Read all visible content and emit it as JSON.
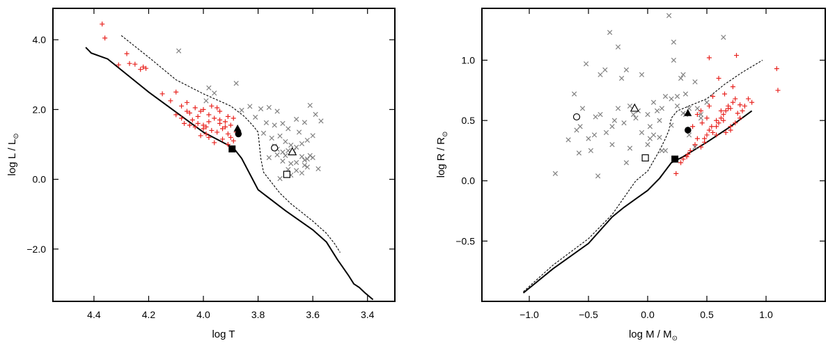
{
  "chart_data": [
    {
      "type": "scatter",
      "title": "",
      "xlabel": "log T",
      "ylabel": "log L / L",
      "ylabel_symbol": "⊙",
      "xlim": [
        4.55,
        3.3
      ],
      "ylim": [
        -3.5,
        4.9
      ],
      "x_reversed": true,
      "grid": false,
      "xticks": [
        4.4,
        4.2,
        4.0,
        3.8,
        3.6,
        3.4
      ],
      "xtick_labels": [
        "4.4",
        "4.2",
        "4.0",
        "3.8",
        "3.6",
        "3.4"
      ],
      "yticks": [
        4.0,
        2.0,
        0.0,
        -2.0
      ],
      "ytick_labels": [
        "4.0",
        "2.0",
        "0.0",
        "−2.0"
      ],
      "colors": {
        "grey": "#808080",
        "red": "#e8231f",
        "black": "#000000"
      },
      "series": [
        {
          "marker": "x",
          "color": "#808080",
          "x": [
            4.09,
            3.98,
            3.96,
            3.99,
            3.88,
            3.83,
            3.79,
            3.76,
            3.73,
            3.86,
            3.81,
            3.77,
            3.74,
            3.71,
            3.69,
            3.66,
            3.63,
            3.61,
            3.59,
            3.57,
            3.78,
            3.75,
            3.72,
            3.7,
            3.68,
            3.65,
            3.62,
            3.6,
            3.74,
            3.71,
            3.69,
            3.66,
            3.64,
            3.76,
            3.73,
            3.7,
            3.67,
            3.64,
            3.62,
            3.71,
            3.68,
            3.66,
            3.63,
            3.61,
            3.69,
            3.66,
            3.64,
            3.62,
            3.72,
            3.68,
            3.6,
            3.63,
            3.58,
            3.73
          ],
          "y": [
            3.68,
            2.62,
            2.47,
            2.25,
            2.75,
            2.09,
            2.02,
            2.06,
            1.95,
            1.98,
            1.78,
            1.62,
            1.55,
            1.6,
            1.45,
            1.72,
            1.63,
            2.12,
            1.86,
            1.67,
            1.32,
            1.18,
            1.24,
            1.08,
            0.98,
            1.35,
            1.12,
            1.25,
            0.95,
            0.78,
            0.82,
            0.92,
            1.02,
            0.62,
            0.7,
            0.68,
            0.82,
            0.65,
            0.58,
            0.52,
            0.45,
            0.48,
            0.55,
            0.68,
            0.28,
            0.25,
            0.18,
            0.35,
            0.02,
            0.12,
            0.62,
            0.4,
            0.3,
            0.86
          ]
        },
        {
          "marker": "+",
          "color": "#e8231f",
          "x": [
            4.37,
            4.36,
            4.31,
            4.28,
            4.27,
            4.25,
            4.22,
            4.21,
            4.23,
            4.15,
            4.12,
            4.1,
            4.08,
            4.06,
            4.05,
            4.03,
            4.01,
            4.0,
            3.98,
            3.97,
            3.95,
            3.94,
            3.92,
            3.91,
            3.9,
            3.89,
            4.1,
            4.08,
            4.06,
            4.04,
            4.02,
            4.0,
            3.98,
            3.96,
            3.94,
            3.92,
            3.93,
            3.95,
            3.97,
            3.99,
            4.01,
            4.03,
            4.05,
            4.07,
            3.91,
            3.9,
            3.89,
            3.93,
            3.96,
            3.98,
            4.0,
            3.94,
            3.88,
            4.02,
            3.99,
            3.91
          ],
          "y": [
            4.45,
            4.05,
            3.28,
            3.6,
            3.32,
            3.3,
            3.22,
            3.18,
            3.15,
            2.45,
            2.25,
            2.5,
            2.1,
            2.2,
            1.9,
            2.05,
            1.95,
            2.0,
            1.85,
            2.1,
            2.05,
            1.7,
            1.65,
            1.8,
            1.55,
            1.75,
            1.85,
            1.75,
            1.95,
            1.7,
            1.6,
            1.55,
            1.65,
            1.75,
            1.6,
            1.5,
            1.45,
            1.35,
            1.4,
            1.3,
            1.25,
            1.5,
            1.55,
            1.6,
            1.3,
            1.2,
            1.1,
            1.15,
            1.05,
            1.2,
            1.45,
            1.95,
            1.35,
            1.8,
            1.5,
            1.0
          ]
        },
        {
          "marker": "filled-square",
          "color": "#000000",
          "x": [
            3.895
          ],
          "y": [
            0.87
          ]
        },
        {
          "marker": "filled-triangle",
          "color": "#000000",
          "x": [
            3.875
          ],
          "y": [
            1.45
          ]
        },
        {
          "marker": "filled-circle",
          "color": "#000000",
          "x": [
            3.872
          ],
          "y": [
            1.3
          ]
        },
        {
          "marker": "open-circle",
          "color": "#000000",
          "x": [
            3.74
          ],
          "y": [
            0.9
          ]
        },
        {
          "marker": "open-triangle",
          "color": "#000000",
          "x": [
            3.675
          ],
          "y": [
            0.78
          ]
        },
        {
          "marker": "open-square",
          "color": "#000000",
          "x": [
            3.695
          ],
          "y": [
            0.14
          ]
        },
        {
          "line": "solid",
          "color": "#000000",
          "x": [
            4.43,
            4.41,
            4.35,
            4.2,
            4.0,
            3.89,
            3.86,
            3.8,
            3.7,
            3.6,
            3.55,
            3.51,
            3.47,
            3.45,
            3.43,
            3.41,
            3.38
          ],
          "y": [
            3.78,
            3.62,
            3.45,
            2.5,
            1.35,
            0.9,
            0.6,
            -0.3,
            -0.9,
            -1.45,
            -1.8,
            -2.3,
            -2.75,
            -3.0,
            -3.1,
            -3.25,
            -3.45
          ]
        },
        {
          "line": "dotted",
          "color": "#000000",
          "x": [
            4.3,
            4.2,
            4.1,
            4.0,
            3.9,
            3.85,
            3.82,
            3.8,
            3.79,
            3.78,
            3.76,
            3.72,
            3.68,
            3.64,
            3.6,
            3.55,
            3.52,
            3.5
          ],
          "y": [
            4.12,
            3.5,
            2.85,
            2.45,
            2.1,
            1.8,
            1.55,
            1.35,
            0.6,
            0.2,
            0.0,
            -0.4,
            -0.7,
            -0.95,
            -1.2,
            -1.55,
            -1.85,
            -2.1
          ]
        }
      ]
    },
    {
      "type": "scatter",
      "title": "",
      "xlabel": "log M / M",
      "xlabel_symbol": "⊙",
      "ylabel": "log R / R",
      "ylabel_symbol": "⊙",
      "xlim": [
        -1.4,
        1.5
      ],
      "ylim": [
        -1.0,
        1.43
      ],
      "grid": false,
      "xticks": [
        -1.0,
        -0.5,
        0.0,
        0.5,
        1.0
      ],
      "xtick_labels": [
        "−1.0",
        "−0.5",
        "0.0",
        "0.5",
        "1.0"
      ],
      "yticks": [
        1.0,
        0.5,
        0.0,
        -0.5
      ],
      "ytick_labels": [
        "1.0",
        "0.5",
        "0.0",
        "−0.5"
      ],
      "colors": {
        "grey": "#808080",
        "red": "#e8231f",
        "black": "#000000"
      },
      "series": [
        {
          "marker": "x",
          "color": "#808080",
          "x": [
            -0.78,
            -0.67,
            -0.62,
            -0.57,
            -0.52,
            -0.48,
            -0.44,
            -0.4,
            -0.36,
            -0.32,
            -0.28,
            -0.25,
            -0.22,
            -0.18,
            -0.15,
            -0.12,
            -0.08,
            -0.05,
            0.0,
            0.02,
            0.05,
            0.08,
            0.1,
            0.12,
            0.15,
            0.18,
            0.2,
            0.22,
            0.25,
            0.28,
            0.3,
            0.32,
            0.35,
            0.4,
            0.45,
            0.5,
            -0.6,
            -0.55,
            -0.5,
            -0.45,
            -0.4,
            -0.35,
            -0.3,
            -0.25,
            -0.2,
            -0.15,
            -0.1,
            -0.05,
            0.0,
            0.05,
            0.1,
            0.15,
            0.2,
            0.25,
            0.3,
            0.35,
            0.4,
            0.45,
            -0.42,
            -0.58,
            -0.3,
            -0.18,
            0.02,
            0.12,
            0.22,
            0.32,
            0.42,
            0.64
          ],
          "y": [
            0.06,
            0.34,
            0.72,
            0.45,
            0.97,
            0.25,
            0.53,
            0.88,
            0.92,
            1.23,
            0.5,
            1.11,
            0.85,
            0.92,
            0.62,
            0.55,
            0.58,
            0.88,
            0.55,
            0.45,
            0.65,
            0.58,
            0.5,
            0.6,
            0.7,
            1.37,
            0.68,
            1.0,
            0.62,
            0.85,
            0.88,
            0.55,
            0.6,
            0.82,
            0.55,
            0.65,
            0.42,
            0.6,
            0.35,
            0.38,
            0.55,
            0.4,
            0.45,
            0.6,
            0.48,
            0.27,
            0.52,
            0.4,
            0.3,
            0.38,
            0.36,
            0.25,
            0.46,
            0.7,
            0.56,
            0.38,
            0.28,
            0.52,
            0.04,
            0.23,
            0.3,
            0.15,
            0.35,
            0.25,
            1.15,
            0.72,
            0.6,
            1.19
          ]
        },
        {
          "marker": "+",
          "color": "#e8231f",
          "x": [
            0.52,
            0.75,
            1.09,
            1.1,
            0.33,
            0.36,
            0.4,
            0.42,
            0.45,
            0.48,
            0.5,
            0.52,
            0.55,
            0.58,
            0.6,
            0.62,
            0.64,
            0.66,
            0.68,
            0.7,
            0.72,
            0.74,
            0.76,
            0.78,
            0.8,
            0.82,
            0.85,
            0.88,
            0.42,
            0.46,
            0.5,
            0.54,
            0.58,
            0.62,
            0.66,
            0.7,
            0.74,
            0.78,
            0.55,
            0.65,
            0.45,
            0.38,
            0.48,
            0.58,
            0.68,
            0.3,
            0.34,
            0.28,
            0.24,
            0.6,
            0.72,
            0.52,
            0.64,
            0.7
          ],
          "y": [
            1.02,
            1.04,
            0.93,
            0.75,
            0.2,
            0.25,
            0.3,
            0.35,
            0.28,
            0.32,
            0.38,
            0.42,
            0.4,
            0.45,
            0.48,
            0.52,
            0.55,
            0.58,
            0.62,
            0.6,
            0.65,
            0.68,
            0.56,
            0.63,
            0.58,
            0.62,
            0.68,
            0.65,
            0.55,
            0.48,
            0.52,
            0.45,
            0.5,
            0.58,
            0.4,
            0.45,
            0.48,
            0.52,
            0.7,
            0.72,
            0.58,
            0.45,
            0.35,
            0.38,
            0.6,
            0.18,
            0.22,
            0.15,
            0.06,
            0.85,
            0.78,
            0.62,
            0.5,
            0.42
          ]
        },
        {
          "marker": "filled-square",
          "color": "#000000",
          "x": [
            0.23
          ],
          "y": [
            0.18
          ]
        },
        {
          "marker": "filled-triangle",
          "color": "#000000",
          "x": [
            0.34
          ],
          "y": [
            0.56
          ]
        },
        {
          "marker": "filled-circle",
          "color": "#000000",
          "x": [
            0.34
          ],
          "y": [
            0.42
          ]
        },
        {
          "marker": "open-circle",
          "color": "#000000",
          "x": [
            -0.6
          ],
          "y": [
            0.53
          ]
        },
        {
          "marker": "open-triangle",
          "color": "#000000",
          "x": [
            -0.11
          ],
          "y": [
            0.6
          ]
        },
        {
          "marker": "open-square",
          "color": "#000000",
          "x": [
            -0.02
          ],
          "y": [
            0.19
          ]
        },
        {
          "line": "solid",
          "color": "#000000",
          "x": [
            -1.05,
            -0.8,
            -0.5,
            -0.3,
            -0.2,
            -0.1,
            0.0,
            0.1,
            0.2,
            0.3,
            0.5,
            0.7,
            0.88
          ],
          "y": [
            -0.93,
            -0.73,
            -0.52,
            -0.3,
            -0.22,
            -0.15,
            -0.08,
            0.02,
            0.15,
            0.2,
            0.32,
            0.45,
            0.58
          ]
        },
        {
          "line": "dotted",
          "color": "#000000",
          "x": [
            -1.05,
            -0.8,
            -0.5,
            -0.3,
            -0.2,
            -0.1,
            0.0,
            0.1,
            0.15,
            0.18,
            0.2,
            0.25,
            0.35,
            0.5,
            0.65,
            0.8,
            0.97
          ],
          "y": [
            -0.92,
            -0.7,
            -0.48,
            -0.28,
            -0.14,
            0.0,
            0.08,
            0.25,
            0.35,
            0.42,
            0.52,
            0.58,
            0.62,
            0.68,
            0.8,
            0.9,
            1.0
          ]
        }
      ]
    }
  ]
}
